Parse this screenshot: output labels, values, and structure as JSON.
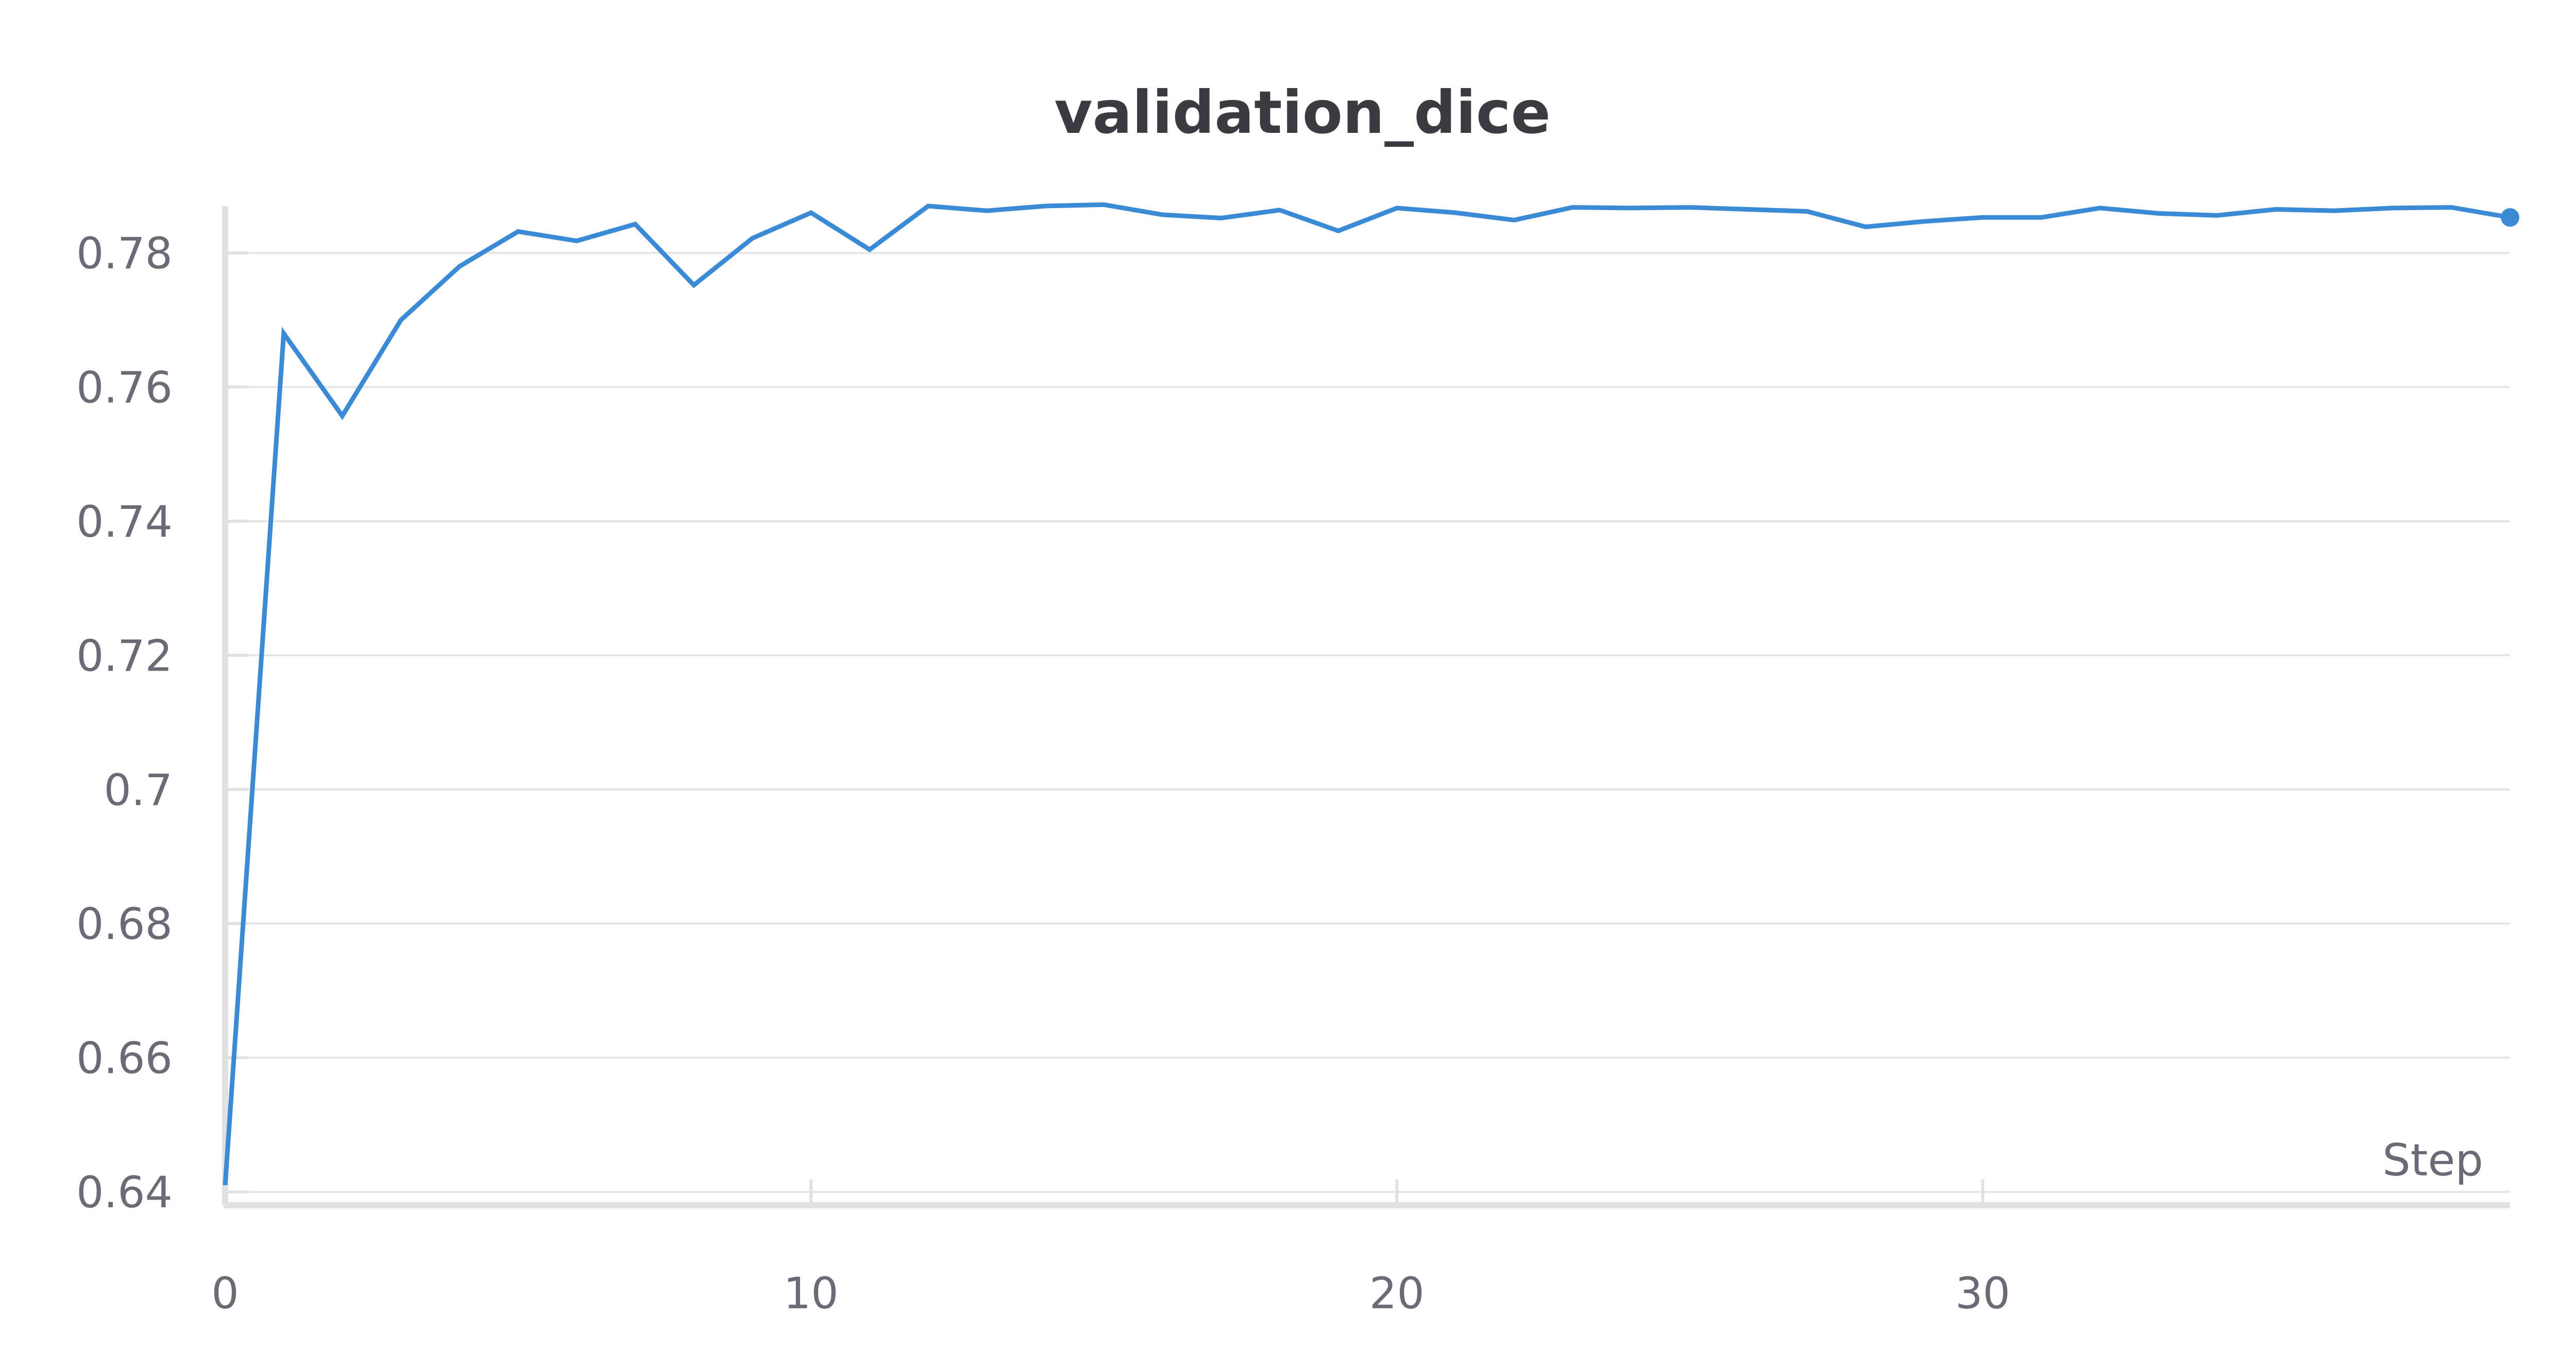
{
  "chart_data": {
    "type": "line",
    "title": "validation_dice",
    "xlabel": "Step",
    "ylabel": "",
    "xlim": [
      0,
      39
    ],
    "ylim": [
      0.638,
      0.787
    ],
    "x_ticks": [
      {
        "value": 0,
        "label": "0"
      },
      {
        "value": 10,
        "label": "10"
      },
      {
        "value": 20,
        "label": "20"
      },
      {
        "value": 30,
        "label": "30"
      }
    ],
    "y_ticks": [
      {
        "value": 0.64,
        "label": "0.64"
      },
      {
        "value": 0.66,
        "label": "0.66"
      },
      {
        "value": 0.68,
        "label": "0.68"
      },
      {
        "value": 0.7,
        "label": "0.7"
      },
      {
        "value": 0.72,
        "label": "0.72"
      },
      {
        "value": 0.74,
        "label": "0.74"
      },
      {
        "value": 0.76,
        "label": "0.76"
      },
      {
        "value": 0.78,
        "label": "0.78"
      }
    ],
    "grid": true,
    "line_color": "#3a8ad6",
    "series": [
      {
        "x": [
          0,
          1,
          2,
          3,
          4,
          5,
          6,
          7,
          8,
          9,
          10,
          11,
          12,
          13,
          14,
          15,
          16,
          17,
          18,
          19,
          20,
          21,
          22,
          23,
          24,
          25,
          26,
          27,
          28,
          29,
          30,
          31,
          32,
          33,
          34,
          35,
          36,
          37,
          38,
          39
        ],
        "values": [
          0.641,
          0.768,
          0.7557,
          0.77,
          0.778,
          0.7832,
          0.7818,
          0.7843,
          0.7752,
          0.7822,
          0.786,
          0.7805,
          0.787,
          0.7863,
          0.787,
          0.7872,
          0.7857,
          0.7852,
          0.7864,
          0.7833,
          0.7867,
          0.786,
          0.7849,
          0.7868,
          0.7867,
          0.7868,
          0.7865,
          0.7862,
          0.7839,
          0.7847,
          0.7853,
          0.7853,
          0.7867,
          0.7859,
          0.7856,
          0.7865,
          0.7863,
          0.7867,
          0.7868,
          0.7853
        ]
      }
    ]
  }
}
